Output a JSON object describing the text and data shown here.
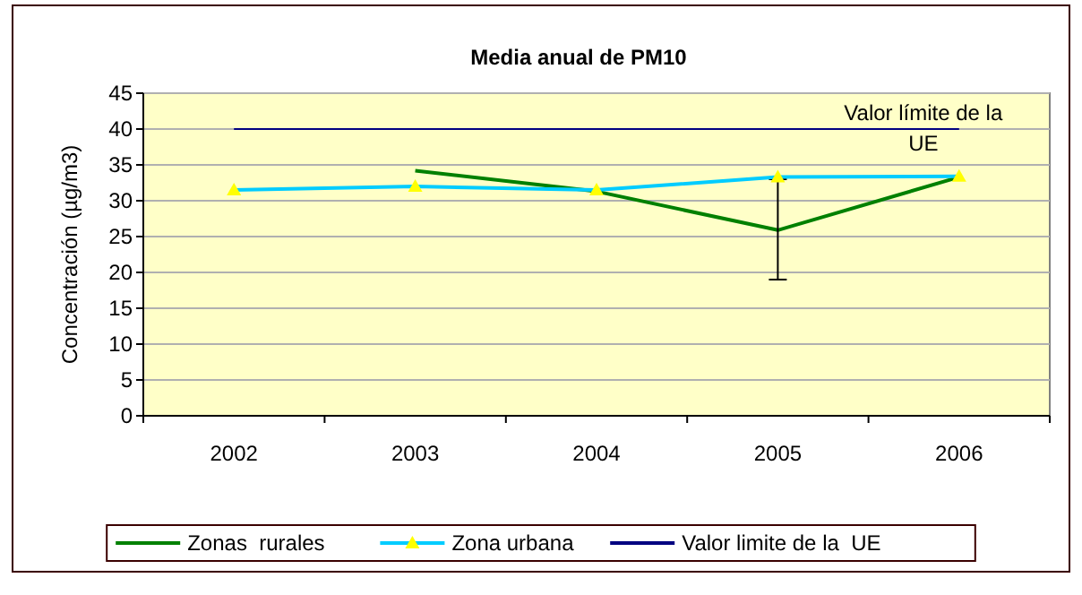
{
  "chart_data": {
    "type": "line",
    "title": "Media anual de PM10",
    "ylabel": "Concentración (µg/m3)",
    "categories": [
      "2002",
      "2003",
      "2004",
      "2005",
      "2006"
    ],
    "series": [
      {
        "name": "Zonas  rurales",
        "color": "#008000",
        "values": [
          null,
          34.2,
          31.3,
          25.9,
          33.3
        ],
        "errors": [
          null,
          null,
          null,
          [
            19,
            33
          ],
          null
        ]
      },
      {
        "name": "Zona urbana",
        "color": "#00ccff",
        "values": [
          31.5,
          32,
          31.5,
          33.3,
          33.4
        ],
        "marker": "triangle"
      },
      {
        "name": "Valor limite de la  UE",
        "color": "#000080",
        "values": [
          40,
          40,
          40,
          40,
          40
        ],
        "marker": "none"
      }
    ],
    "ylim": [
      0,
      45
    ],
    "yticks": [
      0,
      5,
      10,
      15,
      20,
      25,
      30,
      35,
      40,
      45
    ],
    "grid": "y",
    "legend": "bottom",
    "annotations": [
      {
        "text": "Valor límite de la UE",
        "x": "2006",
        "y": 40
      }
    ]
  }
}
